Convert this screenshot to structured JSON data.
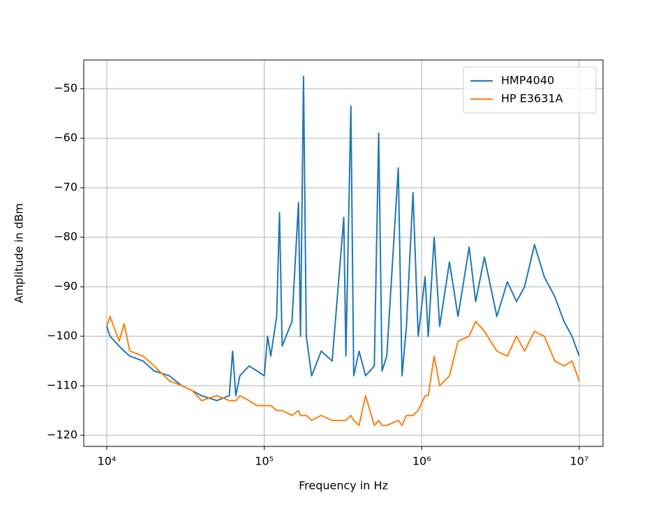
{
  "chart_data": {
    "type": "line",
    "xlabel": "Frequency in Hz",
    "ylabel": "Amplitude in dBm",
    "xscale": "log",
    "grid": true,
    "legend": "upper right",
    "x": [
      10000,
      10500,
      12000,
      12900,
      14000,
      17000,
      20000,
      25000,
      30000,
      35000,
      40000,
      50000,
      60000,
      63000,
      66000,
      70000,
      80000,
      90000,
      100000,
      105000,
      110000,
      120000,
      125000,
      130000,
      150000,
      165000,
      170000,
      177600,
      185000,
      200000,
      230000,
      270000,
      320000,
      330000,
      355000,
      370000,
      400000,
      440000,
      500000,
      533000,
      560000,
      600000,
      710000,
      750000,
      800000,
      880000,
      950000,
      1050000,
      1100000,
      1200000,
      1300000,
      1500000,
      1700000,
      2000000,
      2200000,
      2500000,
      3000000,
      3500000,
      4000000,
      4500000,
      5200000,
      6000000,
      7000000,
      8000000,
      9000000,
      10000000
    ],
    "series": [
      {
        "name": "HMP4040",
        "color": "#1f77b4",
        "values": [
          -98,
          -100,
          -102,
          -103,
          -104,
          -105,
          -107,
          -108,
          -110,
          -111,
          -112,
          -113,
          -112,
          -103,
          -112,
          -108,
          -106,
          -107,
          -108,
          -100,
          -104,
          -96,
          -75,
          -102,
          -97,
          -73,
          -100,
          -47.5,
          -100,
          -108,
          -103,
          -105,
          -76,
          -104,
          -53.5,
          -108,
          -103,
          -108,
          -106,
          -59,
          -107,
          -104,
          -66,
          -108,
          -98,
          -71,
          -100,
          -88,
          -100,
          -80,
          -98,
          -85,
          -96,
          -82,
          -93,
          -84,
          -96,
          -89,
          -93,
          -90,
          -81.5,
          -88,
          -92,
          -97,
          -100,
          -104
        ]
      },
      {
        "name": "HP E3631A",
        "color": "#ff7f0e",
        "values": [
          -98,
          -96,
          -101,
          -97.5,
          -103,
          -104,
          -106,
          -109,
          -110,
          -111,
          -113,
          -112,
          -113,
          -113,
          -113,
          -112,
          -113,
          -114,
          -114,
          -114,
          -114,
          -115,
          -115,
          -115,
          -116,
          -115,
          -116,
          -116,
          -116,
          -117,
          -116,
          -117,
          -117,
          -117,
          -116,
          -117,
          -118,
          -112,
          -118,
          -117,
          -118,
          -118,
          -117,
          -118,
          -116,
          -116,
          -115,
          -112,
          -112,
          -104,
          -110,
          -108,
          -101,
          -100,
          -97,
          -99,
          -103,
          -104,
          -100,
          -103,
          -99,
          -100,
          -105,
          -106,
          -105,
          -109
        ]
      }
    ],
    "xlim": [
      7145,
      14160000
    ],
    "xticks": [
      {
        "value": 10000,
        "label": "10⁴"
      },
      {
        "value": 100000,
        "label": "10⁵"
      },
      {
        "value": 1000000,
        "label": "10⁶"
      },
      {
        "value": 10000000,
        "label": "10⁷"
      }
    ],
    "ylim": [
      -122.25,
      -44.2
    ],
    "yticks": [
      {
        "value": -120,
        "label": "−120"
      },
      {
        "value": -110,
        "label": "−110"
      },
      {
        "value": -100,
        "label": "−100"
      },
      {
        "value": -90,
        "label": "−90"
      },
      {
        "value": -80,
        "label": "−80"
      },
      {
        "value": -70,
        "label": "−70"
      },
      {
        "value": -60,
        "label": "−60"
      },
      {
        "value": -50,
        "label": "−50"
      }
    ]
  }
}
